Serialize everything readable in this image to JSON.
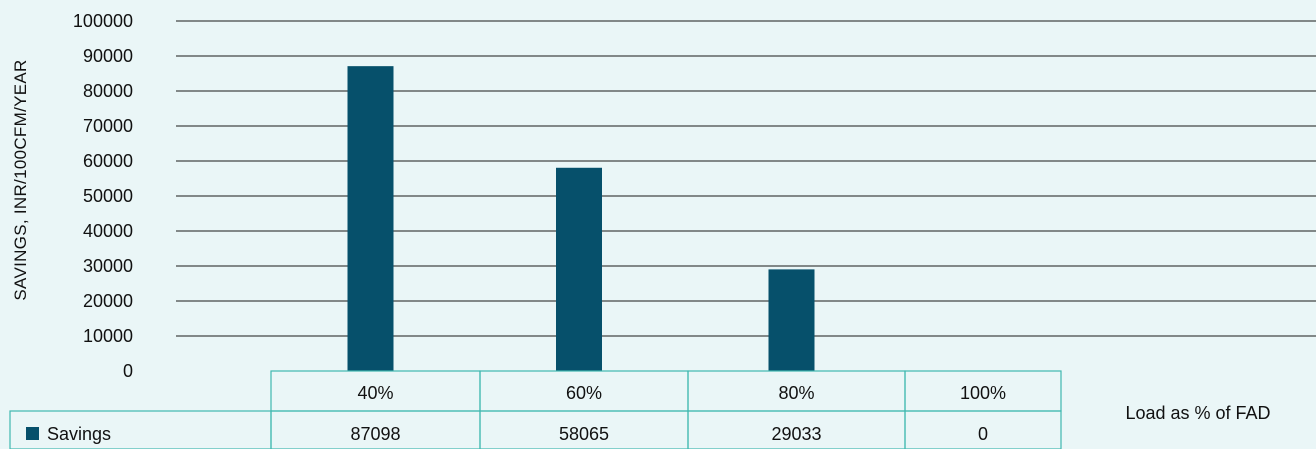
{
  "chart_data": {
    "type": "bar",
    "ylabel": "SAVINGS, INR/100CFM/YEAR",
    "xlabel": "Load as % of FAD",
    "categories": [
      "40%",
      "60%",
      "80%",
      "100%"
    ],
    "series": [
      {
        "name": "Savings",
        "values": [
          87098,
          58065,
          29033,
          0
        ],
        "color": "#06506b"
      }
    ],
    "ylim": [
      0,
      100000
    ],
    "yticks": [
      0,
      10000,
      20000,
      30000,
      40000,
      50000,
      60000,
      70000,
      80000,
      90000,
      100000
    ],
    "grid": true,
    "legend": "data-table"
  }
}
